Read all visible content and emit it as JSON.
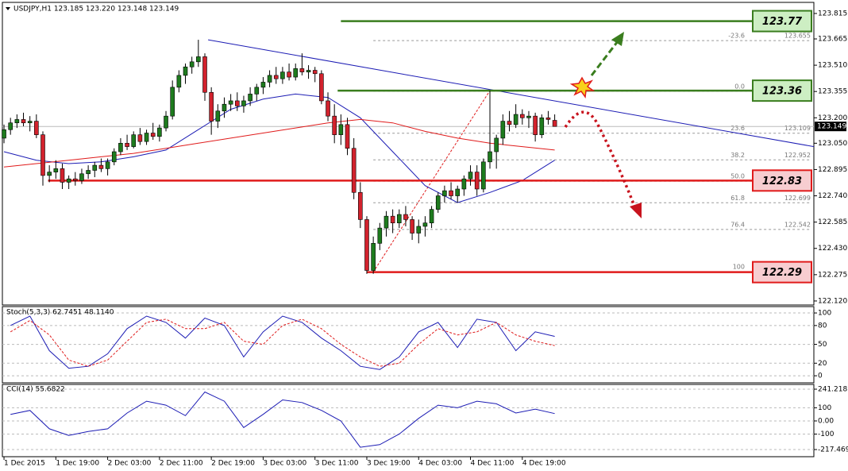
{
  "chart_data": [
    {
      "type": "candlestick",
      "title": "USDJPY,H1  123.185 123.220 123.148 123.149",
      "up_color": "#1e7b1e",
      "down_color": "#d2222d",
      "xlim": [
        -0.25,
        125
      ],
      "ylim": [
        122.101,
        123.871
      ],
      "yticks": [
        123.815,
        123.665,
        {
          "value": 123.51,
          "label": "123.510"
        },
        123.355,
        {
          "value": 123.2,
          "label": "123.200"
        },
        {
          "value": 123.05,
          "label": "123.050"
        },
        122.895,
        {
          "value": 122.74,
          "label": "122.740"
        },
        122.585,
        {
          "value": 122.43,
          "label": "122.430"
        },
        122.275,
        {
          "value": 122.12,
          "label": "122.120"
        }
      ],
      "last_price": 123.149,
      "ohlc": [
        [
          123.08,
          123.16,
          123.05,
          123.13
        ],
        [
          123.13,
          123.2,
          123.1,
          123.17
        ],
        [
          123.17,
          123.22,
          123.14,
          123.19
        ],
        [
          123.19,
          123.23,
          123.15,
          123.17
        ],
        [
          123.17,
          123.21,
          123.12,
          123.18
        ],
        [
          123.18,
          123.22,
          123.08,
          123.1
        ],
        [
          123.1,
          123.12,
          122.8,
          122.86
        ],
        [
          122.86,
          122.92,
          122.82,
          122.88
        ],
        [
          122.88,
          122.95,
          122.84,
          122.9
        ],
        [
          122.9,
          122.93,
          122.78,
          122.82
        ],
        [
          122.82,
          122.86,
          122.78,
          122.84
        ],
        [
          122.84,
          122.88,
          122.8,
          122.83
        ],
        [
          122.83,
          122.9,
          122.81,
          122.87
        ],
        [
          122.87,
          122.92,
          122.84,
          122.89
        ],
        [
          122.89,
          122.94,
          122.85,
          122.92
        ],
        [
          122.92,
          122.96,
          122.88,
          122.9
        ],
        [
          122.9,
          122.96,
          122.86,
          122.94
        ],
        [
          122.94,
          123.02,
          122.92,
          123.0
        ],
        [
          123.0,
          123.08,
          122.98,
          123.05
        ],
        [
          123.05,
          123.1,
          123.01,
          123.03
        ],
        [
          123.03,
          123.12,
          123.02,
          123.1
        ],
        [
          123.1,
          123.14,
          123.04,
          123.06
        ],
        [
          123.06,
          123.13,
          123.04,
          123.11
        ],
        [
          123.11,
          123.17,
          123.07,
          123.09
        ],
        [
          123.09,
          123.16,
          123.06,
          123.14
        ],
        [
          123.14,
          123.24,
          123.12,
          123.21
        ],
        [
          123.21,
          123.42,
          123.19,
          123.38
        ],
        [
          123.38,
          123.48,
          123.35,
          123.45
        ],
        [
          123.45,
          123.52,
          123.4,
          123.5
        ],
        [
          123.5,
          123.56,
          123.46,
          123.53
        ],
        [
          123.53,
          123.66,
          123.5,
          123.56
        ],
        [
          123.56,
          123.58,
          123.3,
          123.35
        ],
        [
          123.35,
          123.38,
          123.1,
          123.18
        ],
        [
          123.18,
          123.28,
          123.14,
          123.24
        ],
        [
          123.24,
          123.32,
          123.2,
          123.28
        ],
        [
          123.28,
          123.34,
          123.24,
          123.3
        ],
        [
          123.3,
          123.35,
          123.24,
          123.27
        ],
        [
          123.27,
          123.33,
          123.23,
          123.3
        ],
        [
          123.3,
          123.38,
          123.27,
          123.34
        ],
        [
          123.34,
          123.4,
          123.3,
          123.38
        ],
        [
          123.38,
          123.44,
          123.34,
          123.41
        ],
        [
          123.41,
          123.48,
          123.38,
          123.45
        ],
        [
          123.45,
          123.5,
          123.4,
          123.43
        ],
        [
          123.43,
          123.5,
          123.4,
          123.47
        ],
        [
          123.47,
          123.52,
          123.42,
          123.44
        ],
        [
          123.44,
          123.52,
          123.42,
          123.49
        ],
        [
          123.49,
          123.58,
          123.45,
          123.47
        ],
        [
          123.47,
          123.51,
          123.43,
          123.48
        ],
        [
          123.48,
          123.5,
          123.41,
          123.46
        ],
        [
          123.46,
          123.48,
          123.28,
          123.3
        ],
        [
          123.3,
          123.35,
          123.18,
          123.21
        ],
        [
          123.21,
          123.28,
          123.05,
          123.1
        ],
        [
          123.1,
          123.22,
          123.04,
          123.16
        ],
        [
          123.16,
          123.2,
          122.98,
          123.02
        ],
        [
          123.02,
          123.08,
          122.72,
          122.76
        ],
        [
          122.76,
          122.82,
          122.55,
          122.6
        ],
        [
          122.6,
          122.62,
          122.28,
          122.3
        ],
        [
          122.3,
          122.5,
          122.28,
          122.46
        ],
        [
          122.46,
          122.58,
          122.42,
          122.55
        ],
        [
          122.55,
          122.65,
          122.5,
          122.62
        ],
        [
          122.62,
          122.66,
          122.52,
          122.58
        ],
        [
          122.58,
          122.66,
          122.55,
          122.63
        ],
        [
          122.63,
          122.68,
          122.56,
          122.6
        ],
        [
          122.6,
          122.62,
          122.48,
          122.52
        ],
        [
          122.52,
          122.6,
          122.46,
          122.56
        ],
        [
          122.56,
          122.62,
          122.5,
          122.58
        ],
        [
          122.58,
          122.68,
          122.55,
          122.66
        ],
        [
          122.66,
          122.76,
          122.64,
          122.74
        ],
        [
          122.74,
          122.8,
          122.7,
          122.77
        ],
        [
          122.77,
          122.82,
          122.72,
          122.74
        ],
        [
          122.74,
          122.8,
          122.7,
          122.78
        ],
        [
          122.78,
          122.86,
          122.74,
          122.84
        ],
        [
          122.84,
          122.92,
          122.8,
          122.88
        ],
        [
          122.88,
          122.92,
          122.74,
          122.78
        ],
        [
          122.78,
          122.96,
          122.76,
          122.94
        ],
        [
          122.94,
          123.36,
          122.9,
          123.0
        ],
        [
          123.0,
          123.1,
          122.9,
          123.08
        ],
        [
          123.08,
          123.22,
          123.04,
          123.18
        ],
        [
          123.18,
          123.24,
          123.12,
          123.16
        ],
        [
          123.16,
          123.28,
          123.14,
          123.22
        ],
        [
          123.22,
          123.25,
          123.16,
          123.2
        ],
        [
          123.2,
          123.24,
          123.14,
          123.21
        ],
        [
          123.21,
          123.23,
          123.06,
          123.1
        ],
        [
          123.1,
          123.22,
          123.08,
          123.2
        ],
        [
          123.2,
          123.24,
          123.16,
          123.19
        ],
        [
          123.185,
          123.22,
          123.148,
          123.149
        ]
      ],
      "series": [
        {
          "color": "#1c1cb4",
          "x": [
            0,
            5,
            10,
            15,
            20,
            25,
            30,
            35,
            40,
            45,
            50,
            55,
            60,
            65,
            70,
            75,
            80,
            85
          ],
          "values": [
            123.0,
            122.95,
            122.93,
            122.94,
            122.97,
            123.01,
            123.13,
            123.25,
            123.31,
            123.34,
            123.32,
            123.2,
            123.0,
            122.8,
            122.7,
            122.76,
            122.83,
            122.95
          ]
        },
        {
          "color": "#e01b1b",
          "x": [
            0,
            5,
            10,
            15,
            20,
            25,
            30,
            35,
            40,
            45,
            50,
            55,
            60,
            65,
            70,
            75,
            80,
            85
          ],
          "values": [
            122.91,
            122.93,
            122.95,
            122.97,
            122.99,
            123.02,
            123.05,
            123.08,
            123.11,
            123.14,
            123.17,
            123.19,
            123.17,
            123.12,
            123.08,
            123.05,
            123.03,
            123.01
          ]
        }
      ],
      "trendline": {
        "color": "#1c1cb4",
        "x": [
          31.5,
          125
        ],
        "values": [
          123.66,
          123.03
        ]
      },
      "fibonacci": {
        "x": [
          57,
          75
        ],
        "values": [
          122.29,
          123.36
        ],
        "start": 57,
        "levels": [
          {
            "ratio": -23.6,
            "price": 123.655
          },
          {
            "ratio": {
              "value": 0,
              "label": "0.0"
            },
            "price": 123.357
          },
          {
            "ratio": 23.6,
            "price": 123.109
          },
          {
            "ratio": 38.2,
            "price": 122.952
          },
          {
            "ratio": {
              "value": 50,
              "label": "50.0"
            },
            "price": 122.826
          },
          {
            "ratio": 61.8,
            "price": 122.699
          },
          {
            "ratio": 76.4,
            "price": 122.542
          },
          {
            "ratio": 100,
            "price": 122.293
          }
        ]
      },
      "levels": [
        {
          "value": 123.77,
          "color": "#3a7d1e",
          "fill": "#cdeec3",
          "start": 52
        },
        {
          "value": 123.36,
          "color": "#3a7d1e",
          "fill": "#cdeec3",
          "start": 51.5
        },
        {
          "value": 122.83,
          "color": "#e01b1b",
          "fill": "#f7cdd0",
          "start": 6.8
        },
        {
          "value": 122.29,
          "color": "#e01b1b",
          "fill": "#f7cdd0",
          "start": 56
        }
      ]
    },
    {
      "type": "line",
      "title": "Stoch(5,3,3) 62.7451 48.1140",
      "xlim": [
        -0.25,
        125
      ],
      "ylim": [
        -10,
        108.9
      ],
      "yticks": [
        100,
        80,
        50,
        20,
        0
      ],
      "grid": true,
      "x": [
        1,
        4,
        7,
        10,
        13,
        16,
        19,
        22,
        25,
        28,
        31,
        34,
        37,
        40,
        43,
        46,
        49,
        52,
        55,
        58,
        61,
        64,
        67,
        70,
        73,
        76,
        79,
        82,
        85
      ],
      "series": [
        {
          "color": "#1c1cb4",
          "values": [
            80,
            95,
            40,
            12,
            15,
            35,
            75,
            95,
            85,
            60,
            92,
            80,
            30,
            70,
            95,
            85,
            60,
            40,
            15,
            10,
            30,
            70,
            85,
            45,
            90,
            85,
            40,
            70,
            62.7451
          ]
        },
        {
          "color": "#e01b1b",
          "dash": true,
          "values": [
            70,
            88,
            65,
            25,
            15,
            25,
            55,
            85,
            90,
            75,
            75,
            85,
            55,
            50,
            80,
            90,
            75,
            50,
            30,
            15,
            20,
            50,
            75,
            65,
            70,
            85,
            65,
            55,
            48.114
          ]
        }
      ]
    },
    {
      "type": "line",
      "title": "CCI(14) 55.6822",
      "xlim": [
        -0.25,
        125
      ],
      "ylim": [
        -265.7,
        277.4
      ],
      "yticks": [
        241.2187,
        100,
        {
          "value": 0,
          "label": "0.00"
        },
        -100,
        -217.469
      ],
      "grid": true,
      "x": [
        1,
        4,
        7,
        10,
        13,
        16,
        19,
        22,
        25,
        28,
        31,
        34,
        37,
        40,
        43,
        46,
        49,
        52,
        55,
        58,
        61,
        64,
        67,
        70,
        73,
        76,
        79,
        82,
        85
      ],
      "series": [
        {
          "color": "#1c1cb4",
          "values": [
            50,
            80,
            -60,
            -110,
            -80,
            -60,
            60,
            150,
            120,
            40,
            220,
            150,
            -50,
            50,
            160,
            140,
            80,
            0,
            -200,
            -180,
            -100,
            20,
            120,
            100,
            150,
            130,
            60,
            90,
            55.6822
          ]
        }
      ],
      "xticks": [
        {
          "value": 0,
          "label": "1 Dec 2015"
        },
        {
          "value": 8,
          "label": "1 Dec 19:00"
        },
        {
          "value": 16,
          "label": "2 Dec 03:00"
        },
        {
          "value": 24,
          "label": "2 Dec 11:00"
        },
        {
          "value": 32,
          "label": "2 Dec 19:00"
        },
        {
          "value": 40,
          "label": "3 Dec 03:00"
        },
        {
          "value": 48,
          "label": "3 Dec 11:00"
        },
        {
          "value": 56,
          "label": "3 Dec 19:00"
        },
        {
          "value": 64,
          "label": "4 Dec 03:00"
        },
        {
          "value": 72,
          "label": "4 Dec 11:00"
        },
        {
          "value": 80,
          "label": "4 Dec 19:00"
        }
      ]
    }
  ]
}
